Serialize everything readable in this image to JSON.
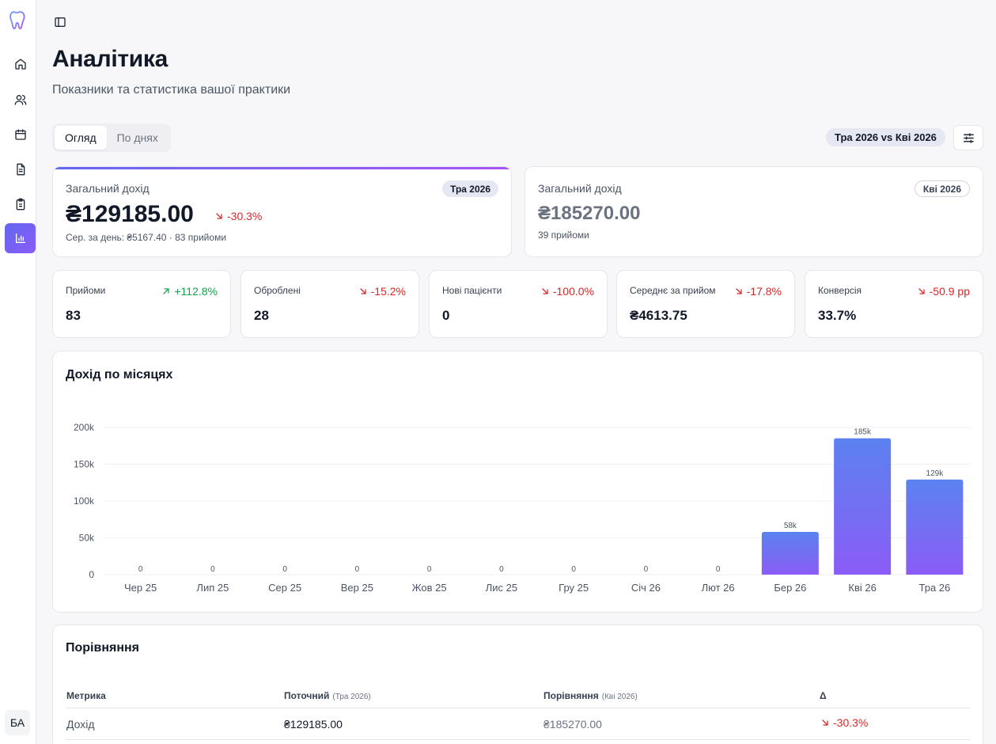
{
  "sidebar": {
    "items": [
      {
        "name": "home-icon"
      },
      {
        "name": "users-icon"
      },
      {
        "name": "calendar-icon"
      },
      {
        "name": "document-icon"
      },
      {
        "name": "clipboard-icon"
      },
      {
        "name": "bar-chart-icon",
        "active": true
      }
    ],
    "avatar": "БА"
  },
  "page": {
    "title": "Аналітика",
    "subtitle": "Показники та статистика вашої практики"
  },
  "tabs": [
    {
      "label": "Огляд",
      "active": true
    },
    {
      "label": "По днях",
      "active": false
    }
  ],
  "compare_badge": "Тра 2026 vs Кві 2026",
  "current_card": {
    "label": "Загальний дохід",
    "badge": "Тра 2026",
    "value": "₴129185.00",
    "delta": "-30.3%",
    "sub": "Сер. за день: ₴5167.40 · 83 прийоми"
  },
  "previous_card": {
    "label": "Загальний дохід",
    "badge": "Кві 2026",
    "value": "₴185270.00",
    "sub": "39 прийоми"
  },
  "kpis": [
    {
      "label": "Прийоми",
      "value": "83",
      "delta": "+112.8%",
      "direction": "up"
    },
    {
      "label": "Оброблені",
      "value": "28",
      "delta": "-15.2%",
      "direction": "down"
    },
    {
      "label": "Нові пацієнти",
      "value": "0",
      "delta": "-100.0%",
      "direction": "down"
    },
    {
      "label": "Середнє за прийом",
      "value": "₴4613.75",
      "delta": "-17.8%",
      "direction": "down"
    },
    {
      "label": "Конверсія",
      "value": "33.7%",
      "delta": "-50.9 pp",
      "direction": "down"
    }
  ],
  "chart_data": {
    "type": "bar",
    "title": "Дохід по місяцях",
    "categories": [
      "Чер 25",
      "Лип 25",
      "Сер 25",
      "Вер 25",
      "Жов 25",
      "Лис 25",
      "Гру 25",
      "Січ 26",
      "Лют 26",
      "Бер 26",
      "Кві 26",
      "Тра 26"
    ],
    "values": [
      0,
      0,
      0,
      0,
      0,
      0,
      0,
      0,
      0,
      58000,
      185270,
      129185
    ],
    "data_labels": [
      "0",
      "0",
      "0",
      "0",
      "0",
      "0",
      "0",
      "0",
      "0",
      "58k",
      "185k",
      "129k"
    ],
    "yticks": [
      "0",
      "50k",
      "100k",
      "150k",
      "200k"
    ],
    "ylim": [
      0,
      200000
    ],
    "xlabel": "",
    "ylabel": "",
    "grid": true,
    "bar_color_top": "#5b82f0",
    "bar_color_bottom": "#8b5cf6"
  },
  "comparison": {
    "title": "Порівняння",
    "headers": {
      "metric": "Метрика",
      "current": "Поточний",
      "current_period": "(Тра 2026)",
      "compare": "Порівняння",
      "compare_period": "(Кві 2026)",
      "delta": "Δ"
    },
    "rows": [
      {
        "metric": "Дохід",
        "current": "₴129185.00",
        "compare": "₴185270.00",
        "delta": "-30.3%"
      }
    ]
  },
  "colors": {
    "accent": "#6366f1",
    "accent2": "#8b5cf6",
    "positive": "#16a34a",
    "negative": "#dc2626"
  }
}
